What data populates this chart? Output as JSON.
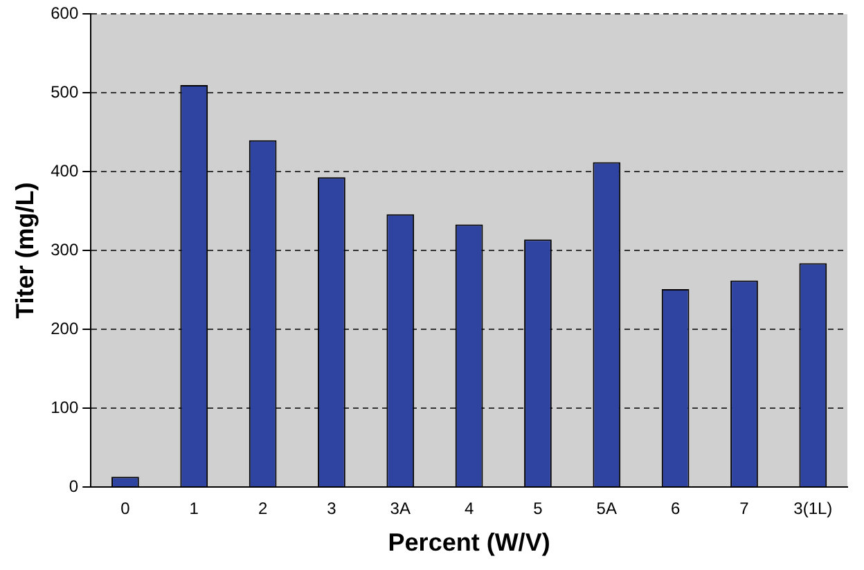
{
  "chart_data": {
    "type": "bar",
    "xlabel": "Percent (W/V)",
    "ylabel": "Titer (mg/L)",
    "categories": [
      "0",
      "1",
      "2",
      "3",
      "3A",
      "4",
      "5",
      "5A",
      "6",
      "7",
      "3(1L)"
    ],
    "values": [
      13,
      510,
      440,
      393,
      346,
      333,
      314,
      412,
      251,
      262,
      284
    ],
    "color": "#2e44a0",
    "ylim": [
      0,
      600
    ],
    "yticks": [
      0,
      100,
      200,
      300,
      400,
      500,
      600
    ],
    "grid": "y",
    "line_style": "dashed"
  }
}
